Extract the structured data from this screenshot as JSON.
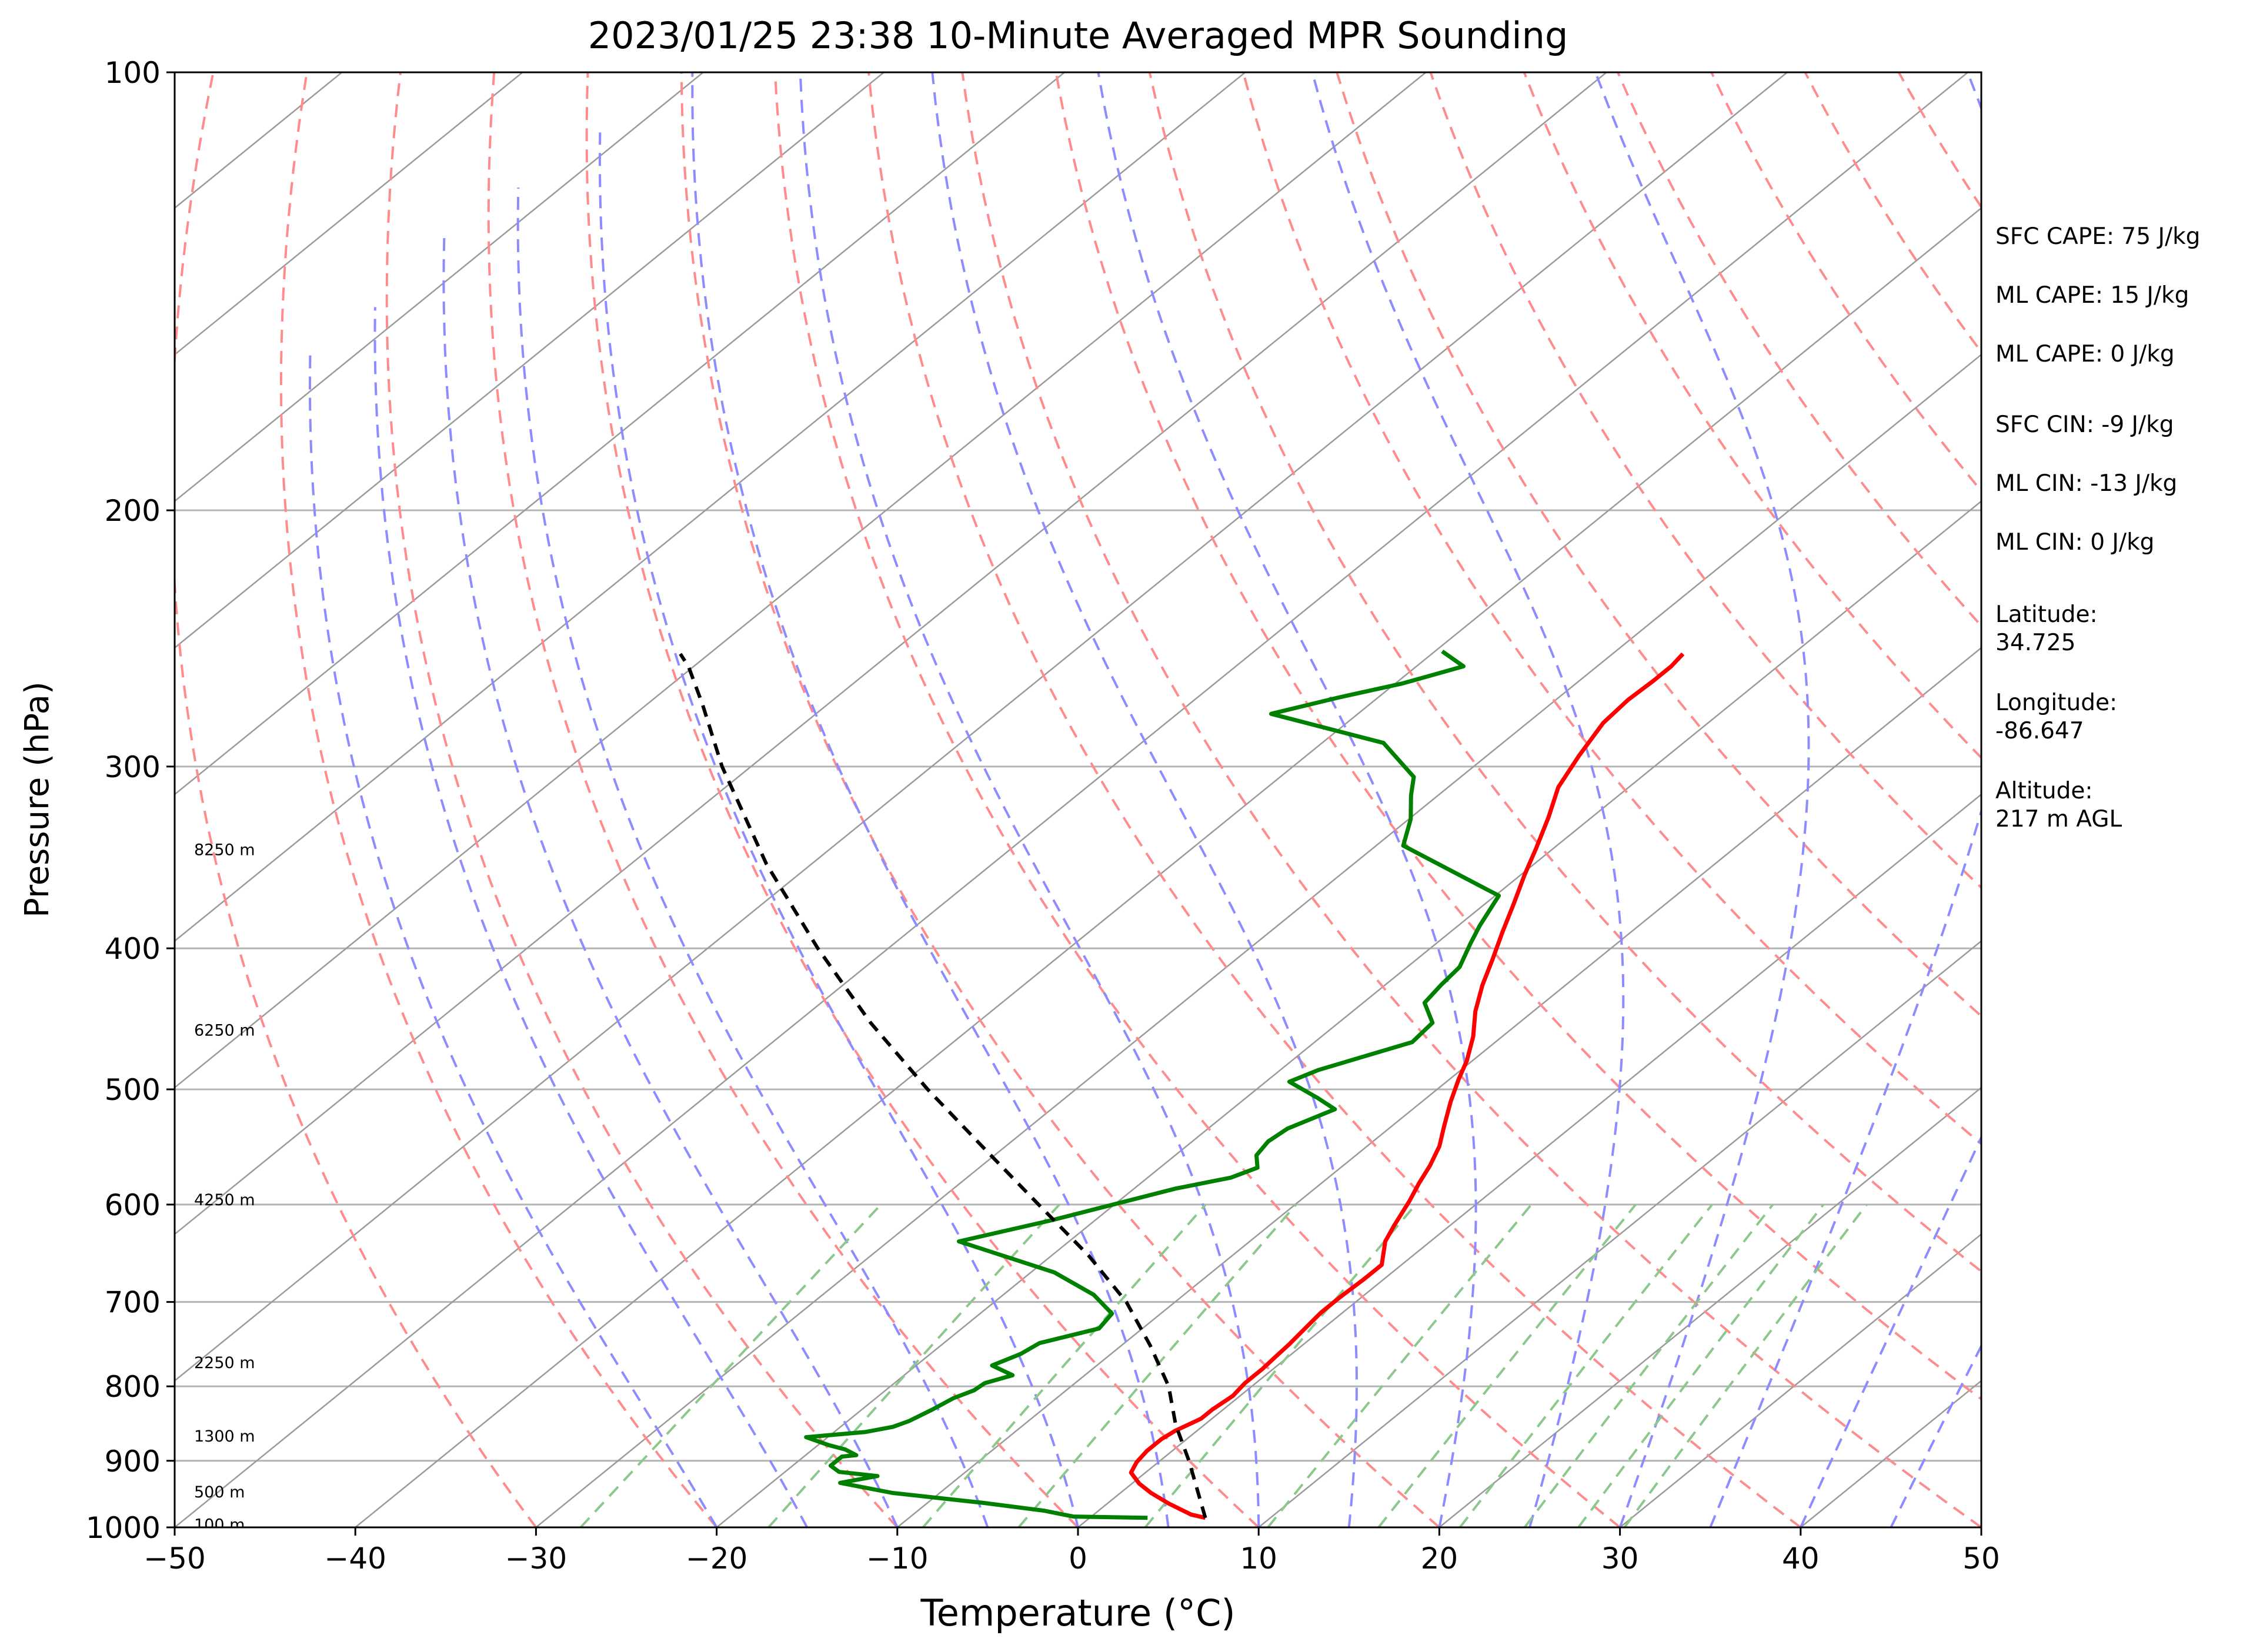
{
  "colors": {
    "temperature": "#ff0000",
    "dewpoint": "#008000",
    "parcel": "#000000",
    "dry_adiabat": "#ff8c8c",
    "moist_adiabat": "#8c8cff",
    "mixing_ratio": "#8cc88c",
    "isotherm": "#9a9a9a",
    "isobar": "#b4b4b4"
  },
  "stats": [
    "SFC CAPE: 75 J/kg",
    "ML CAPE: 15 J/kg",
    "ML CAPE: 0 J/kg",
    "SFC CIN: -9 J/kg",
    "ML CIN: -13 J/kg",
    "ML CIN: 0 J/kg"
  ],
  "location": {
    "latitude_label": "Latitude:",
    "latitude_value": "34.725",
    "longitude_label": "Longitude:",
    "longitude_value": "-86.647",
    "altitude_label": "Altitude:",
    "altitude_value": "217 m AGL"
  },
  "chart_data": {
    "type": "skew-t log-p sounding",
    "title": "2023/01/25 23:38 10-Minute Averaged MPR Sounding",
    "xlabel": "Temperature (°C)",
    "ylabel": "Pressure (hPa)",
    "xlim": [
      -50,
      50
    ],
    "ylim": [
      1000,
      100
    ],
    "y_scale": "log",
    "x_ticks": [
      -50,
      -40,
      -30,
      -20,
      -10,
      0,
      10,
      20,
      30,
      40,
      50
    ],
    "x_tick_labels": [
      "−50",
      "−40",
      "−30",
      "−20",
      "−10",
      "0",
      "10",
      "20",
      "30",
      "40",
      "50"
    ],
    "y_ticks": [
      100,
      200,
      300,
      400,
      500,
      600,
      700,
      800,
      900,
      1000
    ],
    "y_tick_labels": [
      "100",
      "200",
      "300",
      "400",
      "500",
      "600",
      "700",
      "800",
      "900",
      "1000"
    ],
    "height_labels": [
      {
        "p": 995,
        "text": "100 m"
      },
      {
        "p": 945,
        "text": "500 m"
      },
      {
        "p": 865,
        "text": "1300 m"
      },
      {
        "p": 770,
        "text": "2250 m"
      },
      {
        "p": 595,
        "text": "4250 m"
      },
      {
        "p": 455,
        "text": "6250 m"
      },
      {
        "p": 342,
        "text": "8250 m"
      }
    ],
    "series": [
      {
        "key": "temperature",
        "points": [
          [
            6.4,
            985
          ],
          [
            5.4,
            980
          ],
          [
            3.4,
            963
          ],
          [
            1.7,
            947
          ],
          [
            0.4,
            933
          ],
          [
            -0.8,
            917
          ],
          [
            -1.2,
            902
          ],
          [
            -1.4,
            886
          ],
          [
            -1.4,
            870
          ],
          [
            -1.2,
            858
          ],
          [
            -0.6,
            842
          ],
          [
            -0.6,
            830
          ],
          [
            -0.4,
            812
          ],
          [
            -0.6,
            796
          ],
          [
            -0.6,
            778
          ],
          [
            -0.7,
            764
          ],
          [
            -0.8,
            748
          ],
          [
            -1.0,
            730
          ],
          [
            -1.2,
            712
          ],
          [
            -1.2,
            695
          ],
          [
            -1.1,
            676
          ],
          [
            -1.1,
            660
          ],
          [
            -2.5,
            636
          ],
          [
            -3.1,
            620
          ],
          [
            -3.9,
            597
          ],
          [
            -4.6,
            580
          ],
          [
            -5.2,
            564
          ],
          [
            -6.0,
            547
          ],
          [
            -7.1,
            530
          ],
          [
            -8.4,
            510
          ],
          [
            -9.5,
            492
          ],
          [
            -10.3,
            478
          ],
          [
            -11.6,
            460
          ],
          [
            -13.2,
            442
          ],
          [
            -14.6,
            424
          ],
          [
            -15.8,
            407
          ],
          [
            -17.1,
            390
          ],
          [
            -18.4,
            373
          ],
          [
            -19.8,
            356
          ],
          [
            -21.0,
            341
          ],
          [
            -22.4,
            325
          ],
          [
            -23.9,
            310
          ],
          [
            -24.9,
            295
          ],
          [
            -25.8,
            280
          ],
          [
            -26.0,
            270
          ],
          [
            -25.9,
            262
          ],
          [
            -25.9,
            256
          ],
          [
            -26.1,
            251
          ]
        ]
      },
      {
        "key": "dewpoint",
        "points": [
          [
            3.2,
            985
          ],
          [
            -1.0,
            983
          ],
          [
            -3.0,
            974
          ],
          [
            -6.9,
            962
          ],
          [
            -12.6,
            947
          ],
          [
            -16.2,
            932
          ],
          [
            -14.6,
            922
          ],
          [
            -17.0,
            916
          ],
          [
            -17.9,
            907
          ],
          [
            -17.9,
            894
          ],
          [
            -17.2,
            892
          ],
          [
            -18.2,
            884
          ],
          [
            -19.4,
            878
          ],
          [
            -21.2,
            867
          ],
          [
            -18.3,
            860
          ],
          [
            -17.1,
            853
          ],
          [
            -16.6,
            845
          ],
          [
            -16.1,
            830
          ],
          [
            -15.7,
            815
          ],
          [
            -15.1,
            805
          ],
          [
            -15.0,
            796
          ],
          [
            -14.0,
            786
          ],
          [
            -15.8,
            774
          ],
          [
            -15.0,
            760
          ],
          [
            -14.7,
            747
          ],
          [
            -12.4,
            730
          ],
          [
            -12.7,
            713
          ],
          [
            -15.0,
            692
          ],
          [
            -18.7,
            668
          ],
          [
            -26.1,
            636
          ],
          [
            -22.4,
            615
          ],
          [
            -17.7,
            585
          ],
          [
            -15.4,
            575
          ],
          [
            -14.6,
            566
          ],
          [
            -15.5,
            555
          ],
          [
            -15.8,
            543
          ],
          [
            -15.6,
            532
          ],
          [
            -14.3,
            516
          ],
          [
            -16.0,
            507
          ],
          [
            -18.7,
            494
          ],
          [
            -17.9,
            485
          ],
          [
            -14.6,
            464
          ],
          [
            -14.8,
            450
          ],
          [
            -16.6,
            436
          ],
          [
            -16.9,
            424
          ],
          [
            -17.1,
            412
          ],
          [
            -18.1,
            397
          ],
          [
            -18.8,
            386
          ],
          [
            -19.8,
            368
          ],
          [
            -28.5,
            340
          ],
          [
            -29.9,
            326
          ],
          [
            -31.5,
            314
          ],
          [
            -32.6,
            305
          ],
          [
            -36.6,
            289
          ],
          [
            -44.8,
            276
          ],
          [
            -42.2,
            269
          ],
          [
            -39.6,
            263
          ],
          [
            -37.4,
            256
          ],
          [
            -39.6,
            250
          ]
        ]
      },
      {
        "key": "parcel",
        "points": [
          [
            6.4,
            985
          ],
          [
            1.6,
            900
          ],
          [
            -1.6,
            850
          ],
          [
            -4.6,
            800
          ],
          [
            -8.4,
            750
          ],
          [
            -12.7,
            700
          ],
          [
            -18.0,
            650
          ],
          [
            -24.2,
            600
          ],
          [
            -30.9,
            550
          ],
          [
            -38.2,
            500
          ],
          [
            -45.9,
            450
          ],
          [
            -53.9,
            400
          ],
          [
            -62.5,
            350
          ],
          [
            -71.6,
            300
          ],
          [
            -76.9,
            272
          ],
          [
            -80.3,
            256
          ],
          [
            -81.6,
            251
          ]
        ]
      }
    ]
  }
}
